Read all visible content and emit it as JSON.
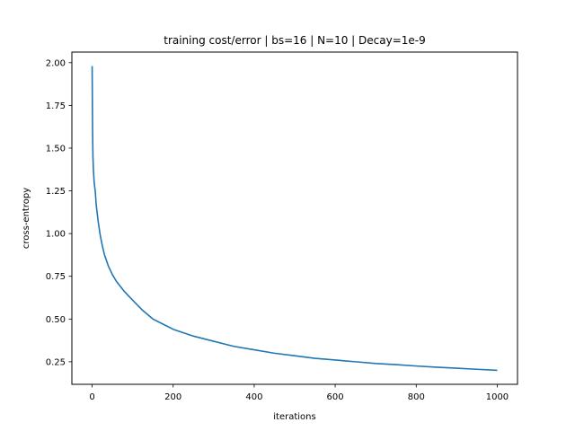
{
  "chart_data": {
    "type": "line",
    "title": "training cost/error | bs=16 | N=10 | Decay=1e-9",
    "xlabel": "iterations",
    "ylabel": "cross-entropy",
    "xlim": [
      -50,
      1050
    ],
    "ylim": [
      0.118,
      2.062
    ],
    "xticks": [
      0,
      200,
      400,
      600,
      800,
      1000
    ],
    "xtick_labels": [
      "0",
      "200",
      "400",
      "600",
      "800",
      "1000"
    ],
    "yticks": [
      0.25,
      0.5,
      0.75,
      1.0,
      1.25,
      1.5,
      1.75,
      2.0
    ],
    "ytick_labels": [
      "0.25",
      "0.50",
      "0.75",
      "1.00",
      "1.25",
      "1.50",
      "1.75",
      "2.00"
    ],
    "grid": false,
    "legend": "none",
    "series": [
      {
        "color": "#1f77b4",
        "x": [
          0,
          1,
          2,
          3,
          5,
          8,
          10,
          15,
          20,
          25,
          30,
          40,
          50,
          60,
          70,
          80,
          100,
          125,
          150,
          175,
          200,
          250,
          300,
          350,
          400,
          450,
          500,
          550,
          600,
          650,
          700,
          750,
          800,
          850,
          900,
          950,
          1000
        ],
        "values": [
          1.98,
          1.62,
          1.45,
          1.38,
          1.3,
          1.24,
          1.17,
          1.07,
          0.99,
          0.93,
          0.88,
          0.81,
          0.76,
          0.72,
          0.69,
          0.66,
          0.61,
          0.55,
          0.5,
          0.47,
          0.44,
          0.4,
          0.37,
          0.34,
          0.32,
          0.3,
          0.285,
          0.27,
          0.26,
          0.25,
          0.24,
          0.233,
          0.225,
          0.218,
          0.212,
          0.206,
          0.2
        ]
      }
    ]
  }
}
